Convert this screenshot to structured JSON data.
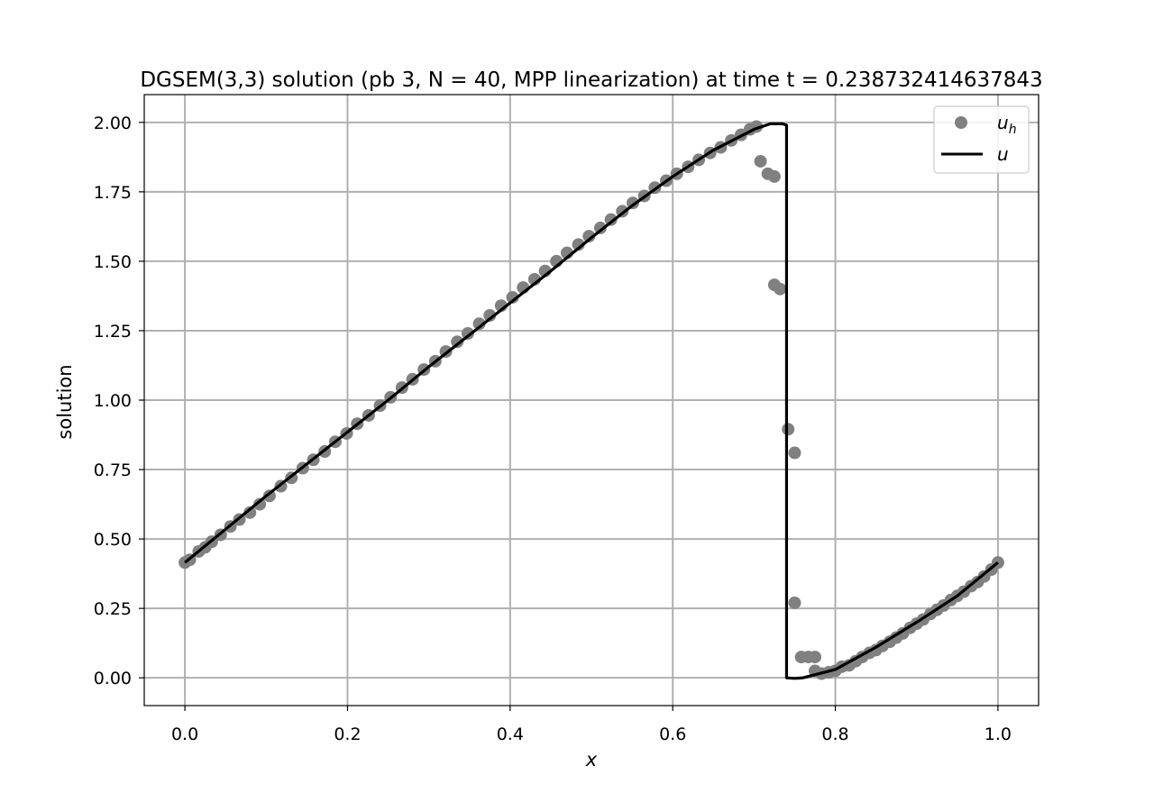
{
  "chart_data": {
    "type": "line",
    "title": "DGSEM(3,3) solution (pb 3, N = 40, MPP linearization) at time t = 0.238732414637843",
    "xlabel": "x",
    "ylabel": "solution",
    "xlim": [
      -0.05,
      1.05
    ],
    "ylim": [
      -0.1,
      2.1
    ],
    "xticks": [
      "0.0",
      "0.2",
      "0.4",
      "0.6",
      "0.8",
      "1.0"
    ],
    "yticks": [
      "0.00",
      "0.25",
      "0.50",
      "0.75",
      "1.00",
      "1.25",
      "1.50",
      "1.75",
      "2.00"
    ],
    "grid": true,
    "legend_position": "top-right",
    "series": [
      {
        "name": "u_h",
        "name_main": "u",
        "name_sub": "h",
        "kind": "markers",
        "color": "#808080",
        "points": [
          [
            0.0,
            0.415
          ],
          [
            0.006,
            0.425
          ],
          [
            0.017,
            0.455
          ],
          [
            0.025,
            0.47
          ],
          [
            0.033,
            0.49
          ],
          [
            0.044,
            0.515
          ],
          [
            0.056,
            0.545
          ],
          [
            0.067,
            0.57
          ],
          [
            0.08,
            0.595
          ],
          [
            0.092,
            0.625
          ],
          [
            0.104,
            0.655
          ],
          [
            0.118,
            0.69
          ],
          [
            0.131,
            0.72
          ],
          [
            0.145,
            0.755
          ],
          [
            0.158,
            0.785
          ],
          [
            0.172,
            0.815
          ],
          [
            0.185,
            0.85
          ],
          [
            0.199,
            0.88
          ],
          [
            0.212,
            0.915
          ],
          [
            0.226,
            0.945
          ],
          [
            0.24,
            0.98
          ],
          [
            0.253,
            1.01
          ],
          [
            0.267,
            1.045
          ],
          [
            0.28,
            1.075
          ],
          [
            0.294,
            1.11
          ],
          [
            0.308,
            1.14
          ],
          [
            0.321,
            1.175
          ],
          [
            0.335,
            1.21
          ],
          [
            0.348,
            1.24
          ],
          [
            0.362,
            1.275
          ],
          [
            0.375,
            1.305
          ],
          [
            0.389,
            1.34
          ],
          [
            0.403,
            1.37
          ],
          [
            0.416,
            1.405
          ],
          [
            0.43,
            1.435
          ],
          [
            0.443,
            1.465
          ],
          [
            0.457,
            1.5
          ],
          [
            0.47,
            1.53
          ],
          [
            0.484,
            1.56
          ],
          [
            0.497,
            1.59
          ],
          [
            0.511,
            1.62
          ],
          [
            0.524,
            1.65
          ],
          [
            0.538,
            1.68
          ],
          [
            0.551,
            1.71
          ],
          [
            0.565,
            1.735
          ],
          [
            0.578,
            1.765
          ],
          [
            0.592,
            1.79
          ],
          [
            0.605,
            1.815
          ],
          [
            0.619,
            1.84
          ],
          [
            0.632,
            1.865
          ],
          [
            0.646,
            1.89
          ],
          [
            0.659,
            1.91
          ],
          [
            0.672,
            1.935
          ],
          [
            0.684,
            1.955
          ],
          [
            0.695,
            1.975
          ],
          [
            0.703,
            1.985
          ],
          [
            0.708,
            1.86
          ],
          [
            0.717,
            1.815
          ],
          [
            0.725,
            1.805
          ],
          [
            0.725,
            1.415
          ],
          [
            0.732,
            1.4
          ],
          [
            0.742,
            0.895
          ],
          [
            0.75,
            0.81
          ],
          [
            0.75,
            0.27
          ],
          [
            0.758,
            0.075
          ],
          [
            0.767,
            0.075
          ],
          [
            0.775,
            0.075
          ],
          [
            0.775,
            0.025
          ],
          [
            0.783,
            0.015
          ],
          [
            0.792,
            0.02
          ],
          [
            0.8,
            0.025
          ],
          [
            0.808,
            0.04
          ],
          [
            0.817,
            0.045
          ],
          [
            0.825,
            0.06
          ],
          [
            0.833,
            0.075
          ],
          [
            0.842,
            0.09
          ],
          [
            0.85,
            0.1
          ],
          [
            0.858,
            0.115
          ],
          [
            0.867,
            0.13
          ],
          [
            0.875,
            0.145
          ],
          [
            0.883,
            0.16
          ],
          [
            0.892,
            0.18
          ],
          [
            0.9,
            0.195
          ],
          [
            0.908,
            0.21
          ],
          [
            0.917,
            0.23
          ],
          [
            0.925,
            0.245
          ],
          [
            0.933,
            0.26
          ],
          [
            0.942,
            0.28
          ],
          [
            0.95,
            0.295
          ],
          [
            0.958,
            0.31
          ],
          [
            0.967,
            0.33
          ],
          [
            0.975,
            0.345
          ],
          [
            0.983,
            0.365
          ],
          [
            0.992,
            0.39
          ],
          [
            1.0,
            0.415
          ]
        ]
      },
      {
        "name": "u",
        "kind": "line",
        "color": "#000000",
        "points": [
          [
            0.0,
            0.415
          ],
          [
            0.05,
            0.535
          ],
          [
            0.1,
            0.655
          ],
          [
            0.15,
            0.77
          ],
          [
            0.2,
            0.885
          ],
          [
            0.25,
            1.0
          ],
          [
            0.3,
            1.12
          ],
          [
            0.35,
            1.235
          ],
          [
            0.4,
            1.35
          ],
          [
            0.45,
            1.465
          ],
          [
            0.5,
            1.585
          ],
          [
            0.55,
            1.7
          ],
          [
            0.6,
            1.805
          ],
          [
            0.65,
            1.9
          ],
          [
            0.7,
            1.975
          ],
          [
            0.72,
            1.995
          ],
          [
            0.735,
            1.995
          ],
          [
            0.74,
            1.99
          ],
          [
            0.74,
            0.0
          ],
          [
            0.75,
            -0.002
          ],
          [
            0.76,
            0.0
          ],
          [
            0.8,
            0.03
          ],
          [
            0.85,
            0.11
          ],
          [
            0.9,
            0.2
          ],
          [
            0.95,
            0.295
          ],
          [
            1.0,
            0.415
          ]
        ]
      }
    ]
  }
}
